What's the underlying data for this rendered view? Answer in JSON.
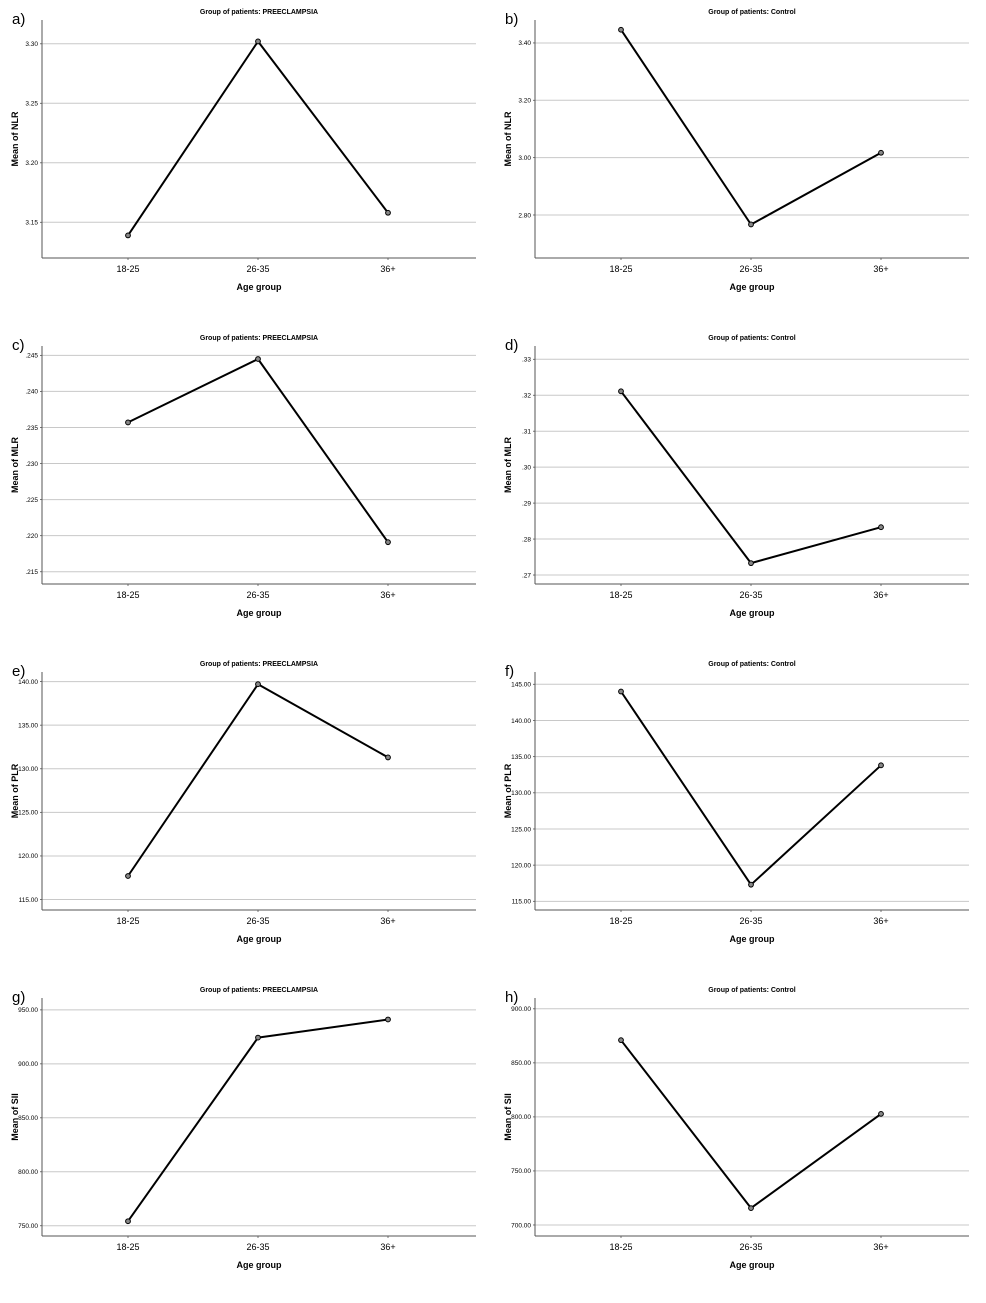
{
  "chart_data": [
    {
      "panel_label": "a)",
      "type": "line",
      "title": "Group of patients: PREECLAMPSIA",
      "xlabel": "Age group",
      "ylabel": "Mean of NLR",
      "categories": [
        "18-25",
        "26-35",
        "36+"
      ],
      "values": [
        3.139,
        3.302,
        3.158
      ],
      "ylim": [
        3.12,
        3.32
      ],
      "yticks": [
        3.15,
        3.2,
        3.25,
        3.3
      ],
      "ytick_labels": [
        "3.15",
        "3.20",
        "3.25",
        "3.30"
      ],
      "grid": true
    },
    {
      "panel_label": "b)",
      "type": "line",
      "title": "Group of patients: Control",
      "xlabel": "Age group",
      "ylabel": "Mean of NLR",
      "categories": [
        "18-25",
        "26-35",
        "36+"
      ],
      "values": [
        3.446,
        2.767,
        3.017
      ],
      "ylim": [
        2.65,
        3.48
      ],
      "yticks": [
        2.8,
        3.0,
        3.2,
        3.4
      ],
      "ytick_labels": [
        "2.80",
        "3.00",
        "3.20",
        "3.40"
      ],
      "grid": true
    },
    {
      "panel_label": "c)",
      "type": "line",
      "title": "Group of patients: PREECLAMPSIA",
      "xlabel": "Age group",
      "ylabel": "Mean of MLR",
      "categories": [
        "18-25",
        "26-35",
        "36+"
      ],
      "values": [
        0.2357,
        0.2445,
        0.2191
      ],
      "ylim": [
        0.2133,
        0.2463
      ],
      "yticks": [
        0.215,
        0.22,
        0.225,
        0.23,
        0.235,
        0.24,
        0.245
      ],
      "ytick_labels": [
        ".215",
        ".220",
        ".225",
        ".230",
        ".235",
        ".240",
        ".245"
      ],
      "grid": true
    },
    {
      "panel_label": "d)",
      "type": "line",
      "title": "Group of patients: Control",
      "xlabel": "Age group",
      "ylabel": "Mean of MLR",
      "categories": [
        "18-25",
        "26-35",
        "36+"
      ],
      "values": [
        0.3211,
        0.2733,
        0.2833
      ],
      "ylim": [
        0.2675,
        0.3337
      ],
      "yticks": [
        0.27,
        0.28,
        0.29,
        0.3,
        0.31,
        0.32,
        0.33
      ],
      "ytick_labels": [
        ".27",
        ".28",
        ".29",
        ".30",
        ".31",
        ".32",
        ".33"
      ],
      "grid": true
    },
    {
      "panel_label": "e)",
      "type": "line",
      "title": "Group of patients: PREECLAMPSIA",
      "xlabel": "Age group",
      "ylabel": "Mean of PLR",
      "categories": [
        "18-25",
        "26-35",
        "36+"
      ],
      "values": [
        117.7,
        139.7,
        131.3
      ],
      "ylim": [
        113.8,
        141.1
      ],
      "yticks": [
        115,
        120,
        125,
        130,
        135,
        140
      ],
      "ytick_labels": [
        "115.00",
        "120.00",
        "125.00",
        "130.00",
        "135.00",
        "140.00"
      ],
      "grid": true
    },
    {
      "panel_label": "f)",
      "type": "line",
      "title": "Group of patients: Control",
      "xlabel": "Age group",
      "ylabel": "Mean of PLR",
      "categories": [
        "18-25",
        "26-35",
        "36+"
      ],
      "values": [
        144.0,
        117.3,
        133.8
      ],
      "ylim": [
        113.8,
        146.7
      ],
      "yticks": [
        115,
        120,
        125,
        130,
        135,
        140,
        145
      ],
      "ytick_labels": [
        "115.00",
        "120.00",
        "125.00",
        "130.00",
        "135.00",
        "140.00",
        "145.00"
      ],
      "grid": true
    },
    {
      "panel_label": "g)",
      "type": "line",
      "title": "Group of patients: PREECLAMPSIA",
      "xlabel": "Age group",
      "ylabel": "Mean of SII",
      "categories": [
        "18-25",
        "26-35",
        "36+"
      ],
      "values": [
        754.2,
        924.3,
        941.1
      ],
      "ylim": [
        740.5,
        961.0
      ],
      "yticks": [
        750,
        800,
        850,
        900,
        950
      ],
      "ytick_labels": [
        "750.00",
        "800.00",
        "850.00",
        "900.00",
        "950.00"
      ],
      "grid": true
    },
    {
      "panel_label": "h)",
      "type": "line",
      "title": "Group of patients: Control",
      "xlabel": "Age group",
      "ylabel": "Mean of SII",
      "categories": [
        "18-25",
        "26-35",
        "36+"
      ],
      "values": [
        871.0,
        715.6,
        802.8
      ],
      "ylim": [
        689.8,
        910.0
      ],
      "yticks": [
        700,
        750,
        800,
        850,
        900
      ],
      "ytick_labels": [
        "700.00",
        "750.00",
        "800.00",
        "850.00",
        "900.00"
      ],
      "grid": true
    }
  ]
}
